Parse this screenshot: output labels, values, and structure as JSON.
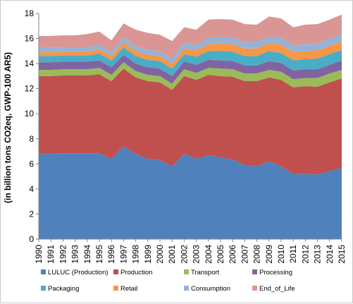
{
  "chart_data": {
    "type": "area",
    "stacked": true,
    "ylabel": "(in billion tons CO2eq, GWP-100 AR5)",
    "xlabel": "",
    "title": "",
    "ylim": [
      0,
      18
    ],
    "yticks": [
      0,
      2,
      4,
      6,
      8,
      10,
      12,
      14,
      16,
      18
    ],
    "grid": false,
    "legend_position": "bottom",
    "x": [
      "1990",
      "1991",
      "1992",
      "1993",
      "1994",
      "1995",
      "1996",
      "1997",
      "1998",
      "1999",
      "2000",
      "2001",
      "2002",
      "2003",
      "2004",
      "2005",
      "2006",
      "2007",
      "2008",
      "2009",
      "2010",
      "2011",
      "2012",
      "2013",
      "2014",
      "2015"
    ],
    "series": [
      {
        "name": "LULUC (Production)",
        "color": "#4f81bd",
        "values": [
          6.8,
          6.8,
          6.85,
          6.85,
          6.85,
          6.85,
          6.4,
          7.4,
          6.8,
          6.4,
          6.3,
          5.8,
          6.8,
          6.4,
          6.7,
          6.5,
          6.35,
          5.9,
          5.8,
          6.2,
          5.8,
          5.2,
          5.2,
          5.15,
          5.4,
          5.7
        ]
      },
      {
        "name": "Production",
        "color": "#c0504d",
        "values": [
          6.2,
          6.2,
          6.2,
          6.2,
          6.2,
          6.3,
          6.2,
          6.2,
          6.1,
          6.2,
          6.2,
          6.1,
          6.2,
          6.3,
          6.4,
          6.5,
          6.6,
          6.7,
          6.8,
          6.7,
          6.9,
          6.9,
          7.0,
          7.0,
          7.1,
          7.1
        ]
      },
      {
        "name": "Transport",
        "color": "#9bbb59",
        "values": [
          0.5,
          0.5,
          0.5,
          0.5,
          0.5,
          0.5,
          0.5,
          0.5,
          0.5,
          0.5,
          0.5,
          0.5,
          0.55,
          0.55,
          0.55,
          0.6,
          0.6,
          0.6,
          0.6,
          0.6,
          0.65,
          0.65,
          0.65,
          0.7,
          0.7,
          0.7
        ]
      },
      {
        "name": "Processing",
        "color": "#8064a2",
        "values": [
          0.6,
          0.6,
          0.6,
          0.6,
          0.6,
          0.6,
          0.6,
          0.6,
          0.6,
          0.6,
          0.6,
          0.6,
          0.6,
          0.65,
          0.65,
          0.65,
          0.65,
          0.65,
          0.65,
          0.7,
          0.7,
          0.7,
          0.7,
          0.7,
          0.7,
          0.75
        ]
      },
      {
        "name": "Packaging",
        "color": "#4bacc6",
        "values": [
          0.5,
          0.5,
          0.5,
          0.5,
          0.5,
          0.55,
          0.55,
          0.6,
          0.6,
          0.6,
          0.6,
          0.6,
          0.6,
          0.65,
          0.7,
          0.75,
          0.75,
          0.75,
          0.75,
          0.8,
          0.8,
          0.8,
          0.8,
          0.85,
          0.85,
          0.85
        ]
      },
      {
        "name": "Retail",
        "color": "#f79646",
        "values": [
          0.3,
          0.3,
          0.3,
          0.3,
          0.3,
          0.35,
          0.35,
          0.4,
          0.4,
          0.4,
          0.4,
          0.4,
          0.45,
          0.5,
          0.55,
          0.6,
          0.6,
          0.6,
          0.6,
          0.65,
          0.65,
          0.65,
          0.65,
          0.65,
          0.65,
          0.65
        ]
      },
      {
        "name": "Consumption",
        "color": "#95b3d7",
        "values": [
          0.35,
          0.35,
          0.35,
          0.35,
          0.35,
          0.35,
          0.35,
          0.4,
          0.4,
          0.4,
          0.4,
          0.4,
          0.45,
          0.45,
          0.5,
          0.5,
          0.5,
          0.5,
          0.5,
          0.5,
          0.55,
          0.55,
          0.55,
          0.55,
          0.55,
          0.6
        ]
      },
      {
        "name": "End_of_Life",
        "color": "#d99694",
        "values": [
          0.95,
          0.95,
          0.95,
          0.95,
          1.05,
          1.05,
          0.9,
          1.1,
          1.3,
          1.35,
          1.3,
          1.4,
          1.25,
          1.2,
          1.45,
          1.45,
          1.45,
          1.45,
          1.4,
          1.6,
          1.55,
          1.45,
          1.55,
          1.55,
          1.55,
          1.55
        ]
      }
    ]
  }
}
